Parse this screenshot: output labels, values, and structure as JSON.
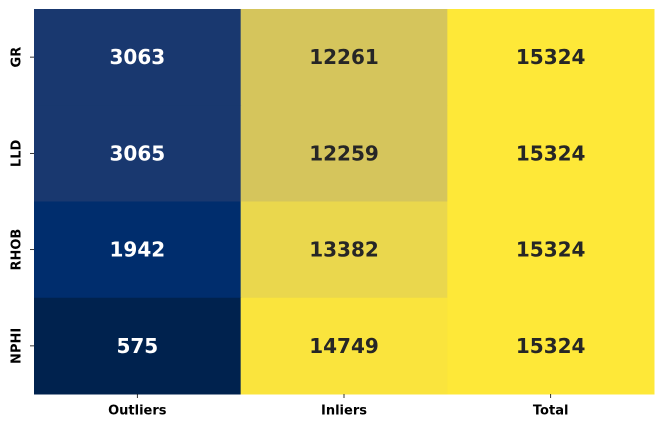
{
  "chart_data": {
    "type": "heatmap",
    "title": "",
    "xlabel": "",
    "ylabel": "",
    "columns": [
      "Outliers",
      "Inliers",
      "Total"
    ],
    "rows": [
      "GR",
      "LLD",
      "RHOB",
      "NPHI"
    ],
    "values": [
      [
        3063,
        12261,
        15324
      ],
      [
        3065,
        12259,
        15324
      ],
      [
        1942,
        13382,
        15324
      ],
      [
        575,
        14749,
        15324
      ]
    ],
    "colormap": "cividis",
    "color_range": [
      575,
      15324
    ],
    "colorbar": false,
    "annotations": true,
    "label_colors": {
      "dark_cell": "#ffffff",
      "light_cell": "#262626"
    }
  }
}
